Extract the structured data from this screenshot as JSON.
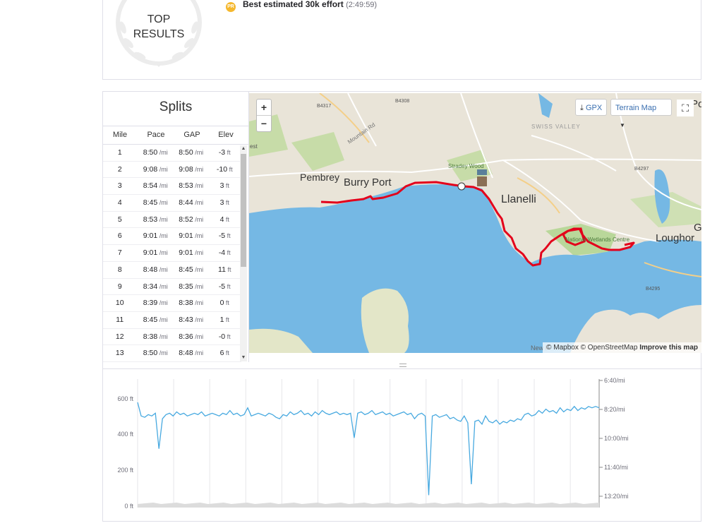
{
  "top_results": {
    "badge_line1": "TOP",
    "badge_line2": "RESULTS",
    "pr_icon": "PR",
    "effort_label": "Best estimated 30k effort",
    "effort_time": "(2:49:59)"
  },
  "splits": {
    "title": "Splits",
    "headers": [
      "Mile",
      "Pace",
      "GAP",
      "Elev"
    ],
    "pace_unit": "/mi",
    "elev_unit": "ft",
    "rows": [
      {
        "mile": "1",
        "pace": "8:50",
        "gap": "8:50",
        "elev": "-3"
      },
      {
        "mile": "2",
        "pace": "9:08",
        "gap": "9:08",
        "elev": "-10"
      },
      {
        "mile": "3",
        "pace": "8:54",
        "gap": "8:53",
        "elev": "3"
      },
      {
        "mile": "4",
        "pace": "8:45",
        "gap": "8:44",
        "elev": "3"
      },
      {
        "mile": "5",
        "pace": "8:53",
        "gap": "8:52",
        "elev": "4"
      },
      {
        "mile": "6",
        "pace": "9:01",
        "gap": "9:01",
        "elev": "-5"
      },
      {
        "mile": "7",
        "pace": "9:01",
        "gap": "9:01",
        "elev": "-4"
      },
      {
        "mile": "8",
        "pace": "8:48",
        "gap": "8:45",
        "elev": "11"
      },
      {
        "mile": "9",
        "pace": "8:34",
        "gap": "8:35",
        "elev": "-5"
      },
      {
        "mile": "10",
        "pace": "8:39",
        "gap": "8:38",
        "elev": "0"
      },
      {
        "mile": "11",
        "pace": "8:45",
        "gap": "8:43",
        "elev": "1"
      },
      {
        "mile": "12",
        "pace": "8:38",
        "gap": "8:36",
        "elev": "-0"
      },
      {
        "mile": "13",
        "pace": "8:50",
        "gap": "8:48",
        "elev": "6"
      }
    ]
  },
  "map": {
    "zoom_in": "+",
    "zoom_out": "−",
    "gpx_label": "GPX",
    "terrain_label": "Terrain Map",
    "attribution_mapbox": "© Mapbox",
    "attribution_osm": "© OpenStreetMap",
    "attribution_improve": "Improve this map",
    "places": [
      {
        "name": "Pembrey",
        "kind": "town"
      },
      {
        "name": "Burry Port",
        "kind": "town"
      },
      {
        "name": "Llanelli",
        "kind": "city"
      },
      {
        "name": "Loughor",
        "kind": "town"
      },
      {
        "name": "Stradey Wood",
        "kind": "park"
      },
      {
        "name": "National Wetlands Centre",
        "kind": "park"
      },
      {
        "name": "SWISS VALLEY",
        "kind": "area"
      },
      {
        "name": "Mountain Rd",
        "kind": "road"
      },
      {
        "name": "B4317",
        "kind": "shield"
      },
      {
        "name": "B4308",
        "kind": "shield"
      },
      {
        "name": "B4297",
        "kind": "shield"
      },
      {
        "name": "B4295",
        "kind": "shield"
      },
      {
        "name": "New F",
        "kind": "road"
      },
      {
        "name": "est",
        "kind": "cut"
      },
      {
        "name": "G",
        "kind": "cut"
      },
      {
        "name": "Po",
        "kind": "cut"
      }
    ],
    "colors": {
      "water": "#75b8e4",
      "land": "#e9e4d8",
      "green": "#b9d79a",
      "route": "#e3001b"
    }
  },
  "chart_data": {
    "type": "line",
    "x": [
      0,
      1,
      2,
      3,
      4,
      5,
      6,
      7,
      8,
      9,
      10,
      11,
      12,
      13,
      14,
      15,
      16,
      17,
      18,
      19,
      20,
      21,
      22,
      23,
      24,
      25,
      26,
      27,
      28,
      29,
      30,
      31,
      32,
      33,
      34,
      35,
      36,
      37,
      38,
      39,
      40,
      41,
      42,
      43,
      44,
      45,
      46,
      47,
      48,
      49,
      50,
      51,
      52,
      53,
      54,
      55,
      56,
      57,
      58,
      59,
      60,
      61,
      62,
      63,
      64,
      65,
      66,
      67,
      68,
      69,
      70,
      71,
      72,
      73,
      74,
      75,
      76,
      77,
      78,
      79,
      80,
      81,
      82,
      83,
      84,
      85,
      86,
      87,
      88,
      89,
      90,
      91,
      92,
      93,
      94,
      95,
      96,
      97,
      98,
      99,
      100,
      101,
      102,
      103,
      104,
      105,
      106,
      107,
      108,
      109,
      110,
      111,
      112,
      113,
      114,
      115,
      116,
      117,
      118,
      119,
      120,
      121,
      122,
      123,
      124,
      125,
      126,
      127,
      128,
      129,
      130
    ],
    "series": [
      {
        "axis": "pace",
        "values": [
          "8:00",
          "8:50",
          "8:55",
          "8:45",
          "8:50",
          "8:40",
          "10:50",
          "9:00",
          "8:45",
          "8:40",
          "8:50",
          "8:35",
          "8:45",
          "8:40",
          "8:50",
          "8:45",
          "8:40",
          "8:45",
          "8:35",
          "8:50",
          "8:45",
          "8:40",
          "8:45",
          "8:50",
          "8:40",
          "8:45",
          "8:30",
          "8:45",
          "8:40",
          "8:50",
          "8:45",
          "8:20",
          "8:50",
          "8:45",
          "8:40",
          "8:45",
          "8:50",
          "8:40",
          "8:45",
          "8:55",
          "9:00",
          "8:45",
          "8:50",
          "8:35",
          "8:45",
          "8:40",
          "8:30",
          "8:45",
          "8:40",
          "8:50",
          "8:35",
          "8:45",
          "8:30",
          "8:40",
          "8:45",
          "8:40",
          "8:35",
          "8:45",
          "8:40",
          "8:45",
          "8:40",
          "10:10",
          "8:40",
          "8:35",
          "8:45",
          "8:40",
          "8:30",
          "8:45",
          "8:40",
          "8:35",
          "8:45",
          "8:40",
          "8:50",
          "8:45",
          "8:40",
          "8:35",
          "8:45",
          "8:40",
          "9:00",
          "8:45",
          "8:40",
          "8:50",
          "13:40",
          "8:50",
          "8:45",
          "8:55",
          "8:50",
          "8:45",
          "9:00",
          "8:55",
          "9:05",
          "9:10",
          "8:50",
          "9:15",
          "13:00",
          "9:10",
          "9:05",
          "9:20",
          "8:50",
          "9:10",
          "9:15",
          "9:05",
          "9:20",
          "9:10",
          "9:15",
          "9:05",
          "9:10",
          "9:00",
          "9:05",
          "8:45",
          "8:40",
          "8:50",
          "8:45",
          "8:30",
          "8:40",
          "8:25",
          "8:35",
          "8:30",
          "8:40",
          "8:20",
          "8:35",
          "8:25",
          "8:30",
          "8:15",
          "8:30",
          "8:20",
          "8:25",
          "8:15",
          "8:20",
          "8:15",
          "8:20"
        ]
      }
    ],
    "y_left_ticks": [
      "600 ft",
      "400 ft",
      "200 ft",
      "0 ft"
    ],
    "y_right_ticks": [
      "6:40/mi",
      "8:20/mi",
      "10:00/mi",
      "11:40/mi",
      "13:20/mi"
    ],
    "pace_range_sec": [
      400,
      860
    ],
    "elev_range_ft": [
      0,
      700
    ],
    "grid": true,
    "line_color": "#47a9e0"
  }
}
